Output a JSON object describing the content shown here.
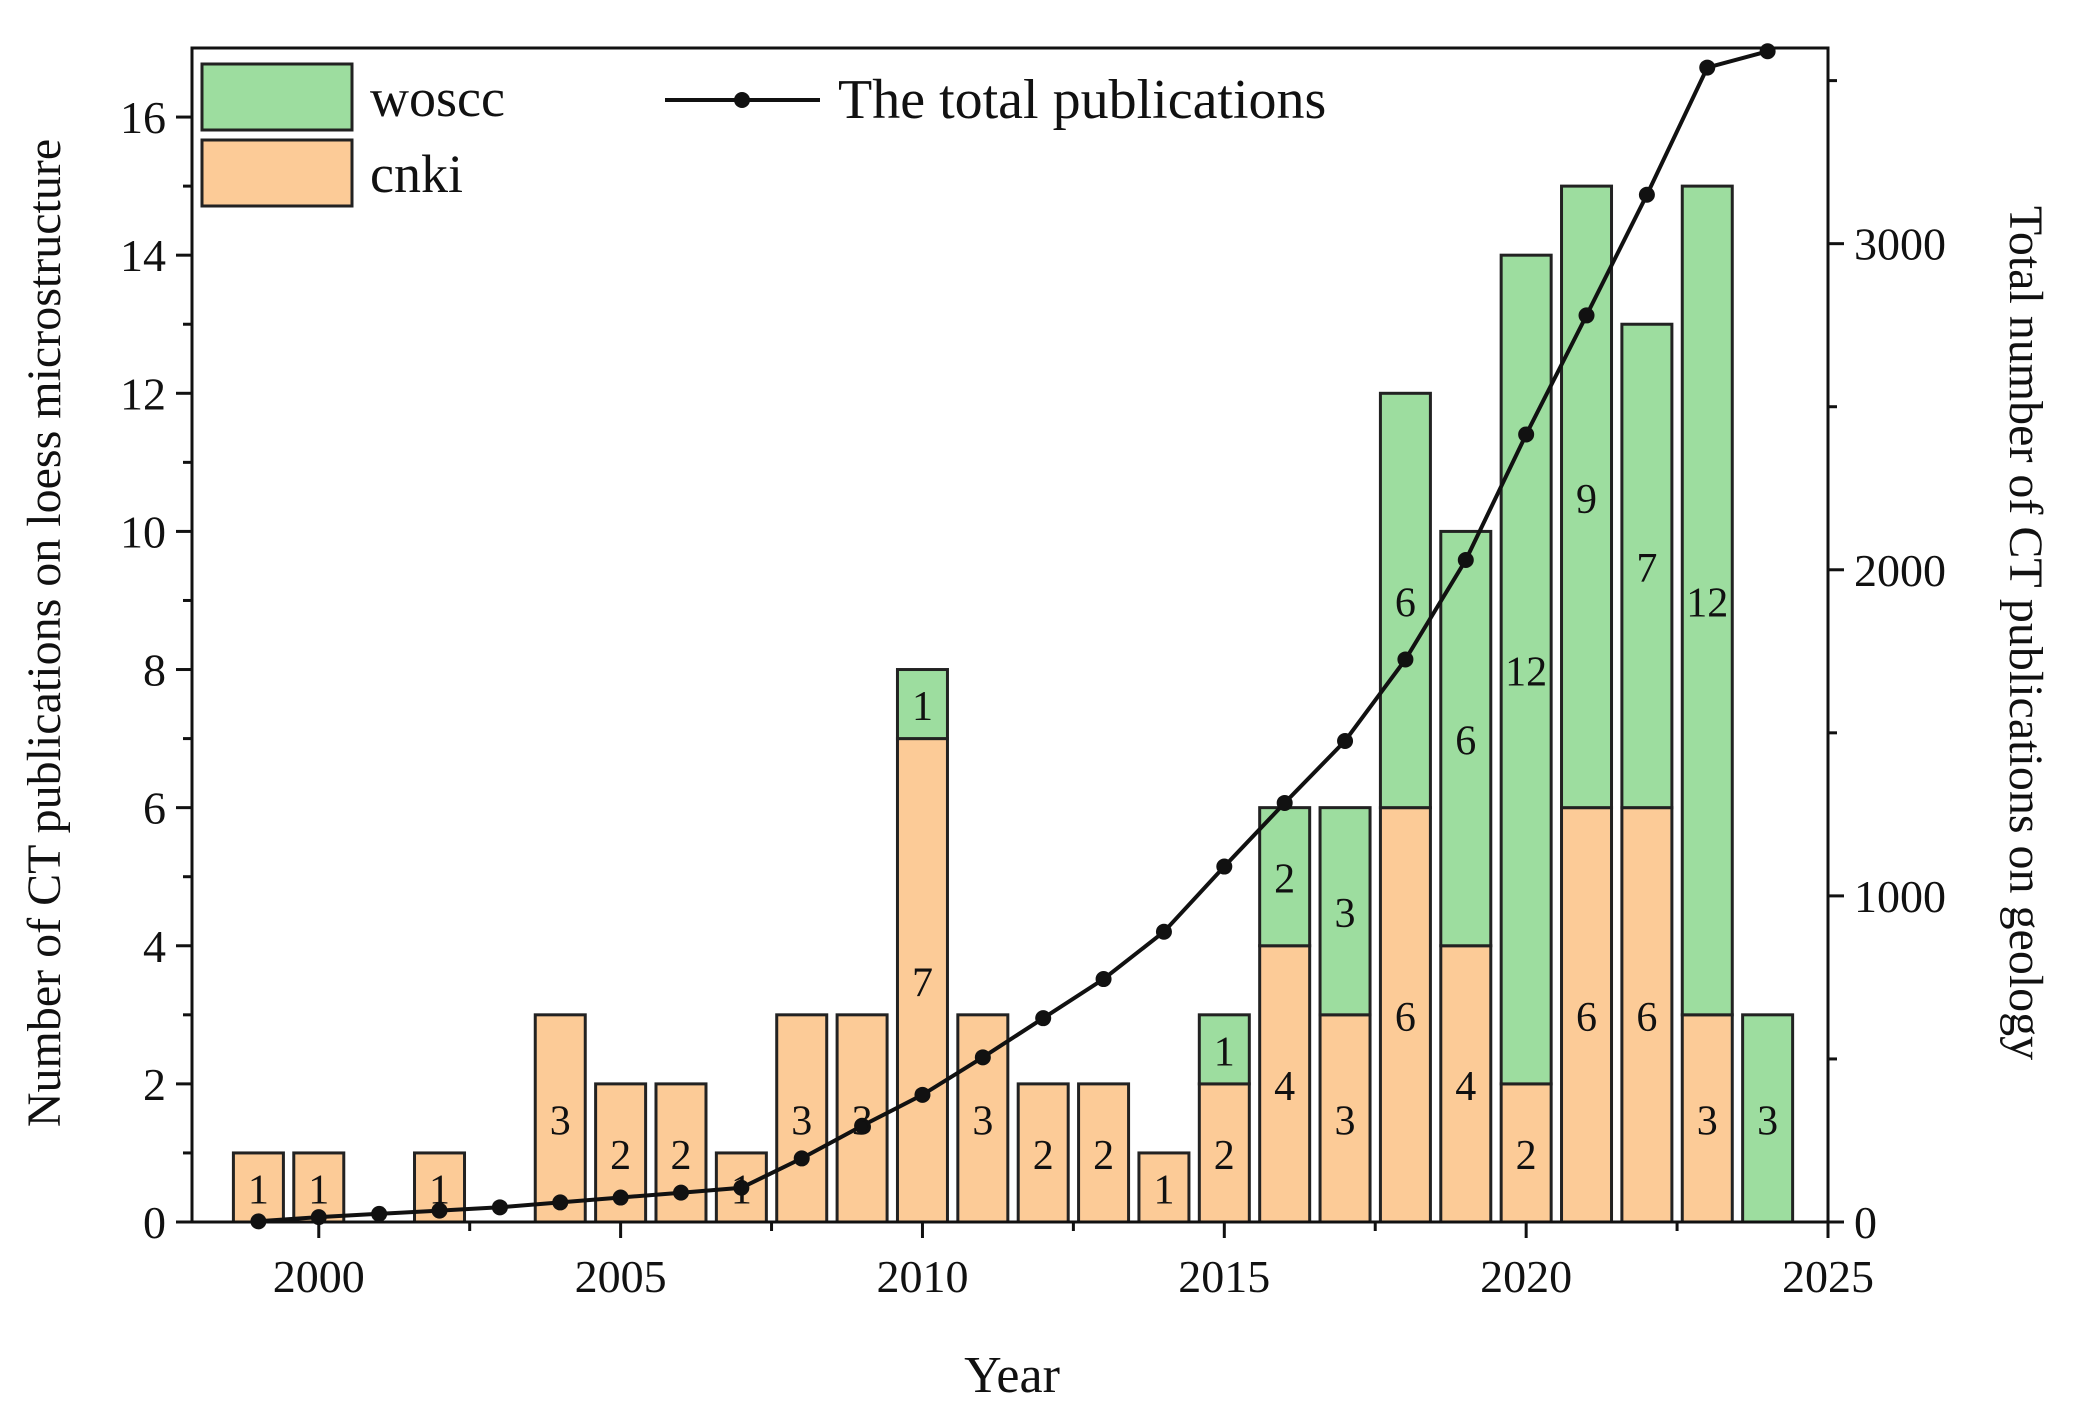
{
  "chart_data": {
    "type": "bar",
    "stacked": true,
    "x": [
      1999,
      2000,
      2002,
      2004,
      2005,
      2006,
      2007,
      2008,
      2009,
      2010,
      2011,
      2012,
      2013,
      2014,
      2015,
      2016,
      2017,
      2018,
      2019,
      2020,
      2021,
      2022,
      2023,
      2024
    ],
    "series": [
      {
        "name": "cnki",
        "color": "#fccb97",
        "values": [
          1,
          1,
          1,
          3,
          2,
          2,
          1,
          3,
          3,
          7,
          3,
          2,
          2,
          1,
          2,
          4,
          3,
          6,
          4,
          2,
          6,
          6,
          3,
          0
        ]
      },
      {
        "name": "woscc",
        "color": "#9ddd9f",
        "values": [
          0,
          0,
          0,
          0,
          0,
          0,
          0,
          0,
          0,
          1,
          0,
          0,
          0,
          0,
          1,
          2,
          3,
          6,
          6,
          12,
          9,
          7,
          12,
          3
        ]
      }
    ],
    "line": {
      "name": "The total publications",
      "axis": "right",
      "x": [
        1999,
        2000,
        2001,
        2002,
        2003,
        2004,
        2005,
        2006,
        2007,
        2008,
        2009,
        2010,
        2011,
        2012,
        2013,
        2014,
        2015,
        2016,
        2017,
        2018,
        2019,
        2020,
        2021,
        2022,
        2023,
        2024
      ],
      "values": [
        2,
        15,
        25,
        35,
        45,
        60,
        75,
        90,
        105,
        195,
        295,
        390,
        505,
        625,
        745,
        890,
        1090,
        1285,
        1475,
        1725,
        2030,
        2415,
        2780,
        3150,
        3540,
        3590
      ]
    },
    "title": "",
    "xlabel": "Year",
    "ylabel": "Number of CT publications on loess microstructure",
    "y2label": "Total number of CT publications on geology",
    "xlim": [
      1997.9,
      2025
    ],
    "ylim": [
      0,
      17
    ],
    "y2lim": [
      0,
      3600
    ],
    "xticks": [
      2000,
      2005,
      2010,
      2015,
      2020,
      2025
    ],
    "yticks": [
      0,
      2,
      4,
      6,
      8,
      10,
      12,
      14,
      16
    ],
    "y2ticks": [
      0,
      1000,
      2000,
      3000
    ],
    "grid": false,
    "legend_position": "top-left"
  }
}
